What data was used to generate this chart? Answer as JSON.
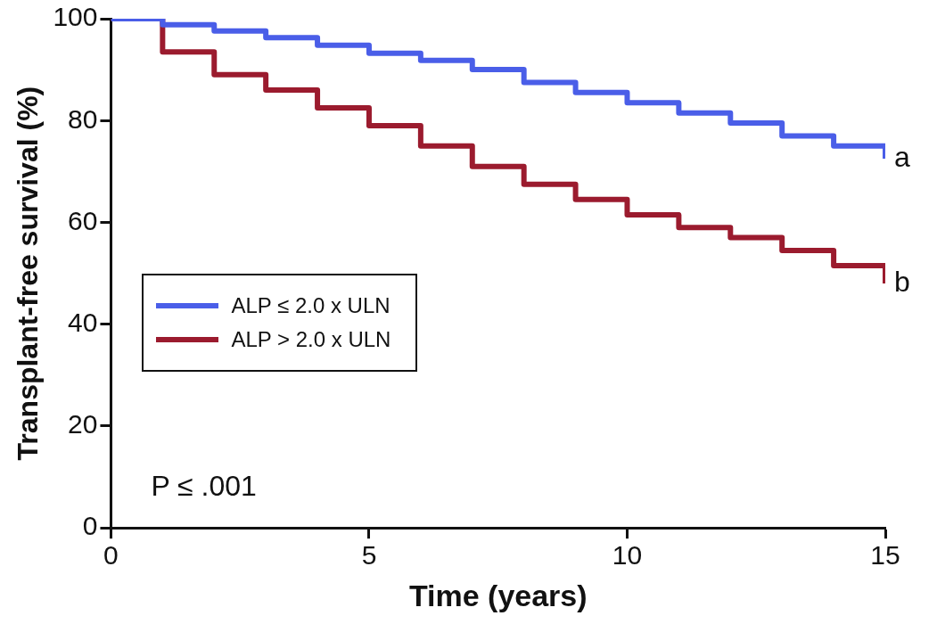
{
  "chart_data": {
    "type": "step",
    "xlabel": "Time (years)",
    "ylabel": "Transplant-free survival (%)",
    "x": [
      0,
      1,
      2,
      3,
      4,
      5,
      6,
      7,
      8,
      9,
      10,
      11,
      12,
      13,
      14,
      15
    ],
    "series": [
      {
        "name": "ALP ≤ 2.0 x ULN",
        "color": "#4a5ee8",
        "values": [
          100,
          98.8,
          97.6,
          96.3,
          94.8,
          93.2,
          91.8,
          90,
          87.5,
          85.5,
          83.5,
          81.5,
          79.5,
          77,
          75,
          72.5
        ]
      },
      {
        "name": "ALP > 2.0 x ULN",
        "color": "#9b1b2e",
        "values": [
          100,
          93.5,
          89,
          86,
          82.5,
          79,
          75,
          71,
          67.5,
          64.5,
          61.5,
          59,
          57,
          54.5,
          51.5,
          48
        ]
      }
    ],
    "xlim": [
      0,
      15
    ],
    "xticks": [
      0,
      5,
      10,
      15
    ],
    "ylim": [
      0,
      100
    ],
    "yticks": [
      0,
      20,
      40,
      60,
      80,
      100
    ],
    "grid": false,
    "legend": "left",
    "marker": "none",
    "line_style": "solid",
    "annotations": [
      {
        "text": "a",
        "x": 15,
        "y": 72.5
      },
      {
        "text": "b",
        "x": 15,
        "y": 48
      },
      "P ≤ .001"
    ]
  }
}
